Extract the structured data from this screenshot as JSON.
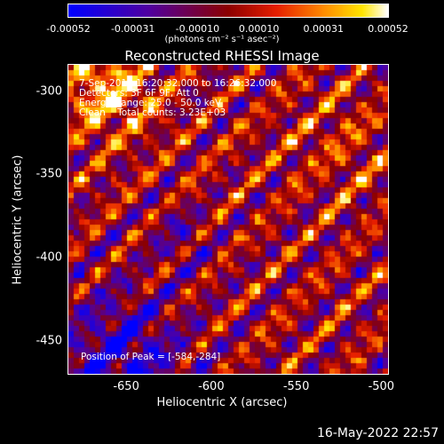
{
  "colorbar": {
    "ticks": [
      "-0.00052",
      "-0.00031",
      "-0.00010",
      "0.00010",
      "0.00031",
      "0.00052"
    ],
    "units": "(photons cm⁻² s⁻¹ asec⁻²)"
  },
  "title": "Reconstructed RHESSI Image",
  "annotations": {
    "line1": "7-Sep-2014 16:20:32.000 to 16:26:32.000",
    "line2": "Detectors: 3F 6F 9F, Att 0",
    "line3": "Energy Range: 25.0 - 50.0 keV",
    "line4": "Clean    Total counts: 3.23E+03",
    "peak": "Position of Peak = [-584,-284]"
  },
  "chart_data": {
    "type": "heatmap",
    "title": "Reconstructed RHESSI Image",
    "xlabel": "Heliocentric X (arcsec)",
    "ylabel": "Heliocentric Y (arcsec)",
    "xlim": [
      -684,
      -496
    ],
    "ylim": [
      -470,
      -284
    ],
    "xticks": [
      "-650",
      "-600",
      "-550",
      "-500"
    ],
    "yticks": [
      "-300",
      "-350",
      "-400",
      "-450"
    ],
    "color_range": [
      -0.00052,
      0.00052
    ],
    "peak_position": [
      -584,
      -284
    ],
    "legend": "colorbar-top"
  },
  "footer": "16-May-2022 22:57"
}
